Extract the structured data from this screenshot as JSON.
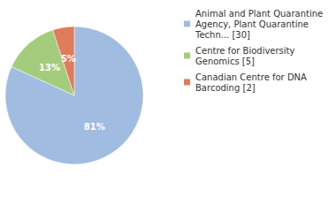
{
  "chart_data": {
    "type": "pie",
    "categories": [
      "Animal and Plant Quarantine Agency, Plant Quarantine Techn... [30]",
      "Centre for Biodiversity Genomics [5]",
      "Canadian Centre for DNA Barcoding [2]"
    ],
    "values": [
      81,
      13,
      5
    ],
    "value_labels": [
      "81%",
      "13%",
      "5%"
    ],
    "colors": [
      "#a0bce0",
      "#a3cc7d",
      "#e07b5c"
    ],
    "data_labels": true,
    "legend": "top-right"
  }
}
